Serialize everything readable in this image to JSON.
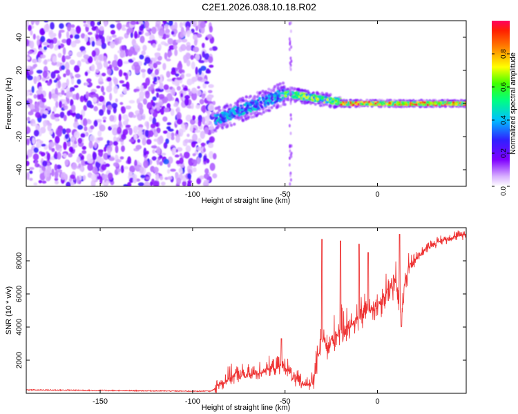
{
  "title": "C2E1.2026.038.10.18.R02",
  "chart_data": [
    {
      "type": "heatmap",
      "xlabel": "Height of straight line (km)",
      "ylabel": "Frequency (Hz)",
      "xlim": [
        -190,
        48
      ],
      "ylim": [
        -50,
        50
      ],
      "xticks": [
        -150,
        -100,
        -50,
        0
      ],
      "yticks": [
        -40,
        -20,
        0,
        20,
        40
      ],
      "xtick_labels": [
        "-150",
        "-100",
        "-50",
        "0"
      ],
      "ytick_labels": [
        "-40",
        "-20",
        "0",
        "20",
        "40"
      ],
      "colorbar": {
        "label": "Normalized spectral amplitude",
        "range": [
          0,
          1
        ],
        "ticks": [
          0,
          0.2,
          0.4,
          0.6,
          0.8
        ],
        "tick_labels": [
          "0.0",
          "0.2",
          "0.4",
          "0.6",
          "0.8"
        ],
        "colors": [
          "#ffffff",
          "#b070ff",
          "#6a00e0",
          "#2030ff",
          "#00d0ff",
          "#00ff60",
          "#ffff00",
          "#ff8000",
          "#ff2000",
          "#ff0060"
        ]
      },
      "regions": [
        {
          "x_range": [
            -190,
            -88
          ],
          "freq_center": 0,
          "freq_halfwidth": 50,
          "amplitude": 0.2,
          "description": "noise"
        },
        {
          "x_range": [
            -88,
            -50
          ],
          "freq_start": -10,
          "freq_end": 6,
          "freq_halfwidth": 7,
          "amplitude": 0.45
        },
        {
          "x_range": [
            -50,
            -20
          ],
          "freq_start": 6,
          "freq_end": 1,
          "freq_halfwidth": 4,
          "amplitude": 0.7
        },
        {
          "x_range": [
            -20,
            48
          ],
          "freq_center": 0,
          "freq_halfwidth": 2,
          "amplitude": 0.95
        }
      ],
      "annotations": [
        {
          "x": -47,
          "feature": "vertical streak"
        }
      ]
    },
    {
      "type": "line",
      "xlabel": "Height of straight line (km)",
      "ylabel": "SNR (10 * v/v)",
      "xlim": [
        -190,
        48
      ],
      "ylim": [
        0,
        10000
      ],
      "xticks": [
        -150,
        -100,
        -50,
        0
      ],
      "yticks": [
        2000,
        4000,
        6000,
        8000
      ],
      "xtick_labels": [
        "-150",
        "-100",
        "-50",
        "0"
      ],
      "ytick_labels": [
        "2000",
        "4000",
        "6000",
        "8000"
      ],
      "series": [
        {
          "name": "SNR",
          "color": "#ee3333",
          "x": [
            -190,
            -160,
            -130,
            -100,
            -90,
            -85,
            -80,
            -75,
            -70,
            -65,
            -60,
            -55,
            -50,
            -45,
            -40,
            -35,
            -32,
            -30,
            -27,
            -25,
            -22,
            -20,
            -15,
            -10,
            -5,
            0,
            5,
            10,
            13,
            15,
            20,
            25,
            30,
            35,
            40,
            45,
            48
          ],
          "y": [
            200,
            180,
            150,
            120,
            130,
            500,
            900,
            1100,
            1000,
            1200,
            1400,
            1500,
            1600,
            800,
            500,
            600,
            2000,
            3500,
            2500,
            3000,
            3500,
            3700,
            4000,
            4500,
            5000,
            5200,
            6000,
            6700,
            4000,
            7000,
            8000,
            8600,
            9000,
            9200,
            9400,
            9500,
            9600
          ]
        }
      ],
      "spikes": [
        {
          "x": -30,
          "y": 9300
        },
        {
          "x": -20,
          "y": 9200
        },
        {
          "x": -10,
          "y": 9000
        },
        {
          "x": -5,
          "y": 8500
        },
        {
          "x": 12,
          "y": 9600
        },
        {
          "x": -52,
          "y": 3300
        }
      ]
    }
  ]
}
